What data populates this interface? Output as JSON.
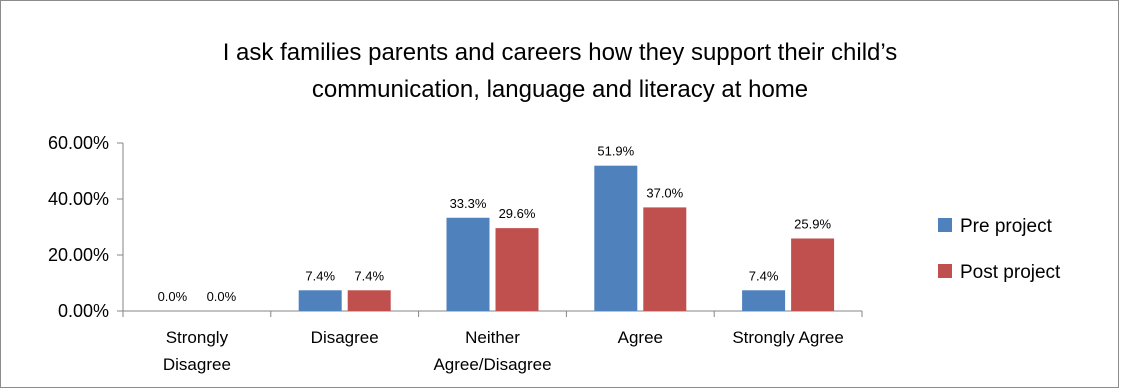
{
  "chart_data": {
    "type": "bar",
    "title": "I ask families parents and careers how they support their child’s communication, language and literacy at home",
    "title_lines": [
      "I ask families parents and careers how they support their child’s",
      "communication, language and literacy at home"
    ],
    "categories": [
      [
        "Strongly",
        "Disagree"
      ],
      [
        "Disagree"
      ],
      [
        "Neither",
        "Agree/Disagree"
      ],
      [
        "Agree"
      ],
      [
        "Strongly Agree"
      ]
    ],
    "ylim": [
      0,
      60
    ],
    "yticks": [
      0,
      20,
      40,
      60
    ],
    "ytick_labels": [
      "0.00%",
      "20.00%",
      "40.00%",
      "60.00%"
    ],
    "grid": false,
    "legend_position": "right",
    "series": [
      {
        "name": "Pre project",
        "color": "#4f81bd",
        "values": [
          0.0,
          7.4,
          33.3,
          51.9,
          7.4
        ],
        "labels": [
          "0.0%",
          "7.4%",
          "33.3%",
          "51.9%",
          "7.4%"
        ]
      },
      {
        "name": "Post project",
        "color": "#c0504d",
        "values": [
          0.0,
          7.4,
          29.6,
          37.0,
          25.9
        ],
        "labels": [
          "0.0%",
          "7.4%",
          "29.6%",
          "37.0%",
          "25.9%"
        ]
      }
    ]
  }
}
